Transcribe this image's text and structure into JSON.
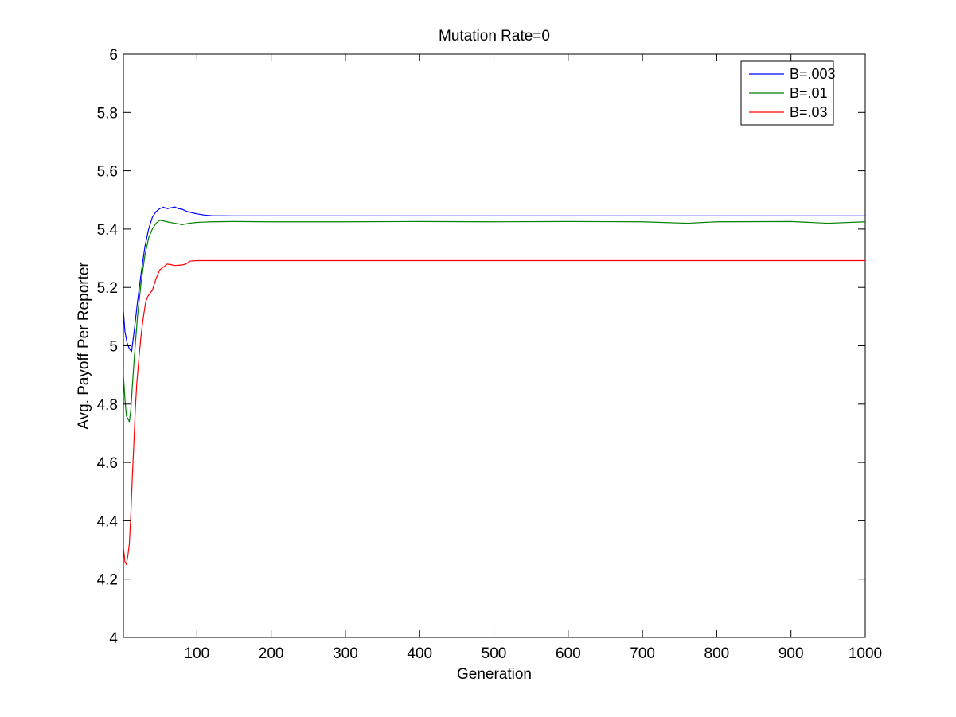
{
  "chart_data": {
    "type": "line",
    "title": "Mutation Rate=0",
    "xlabel": "Generation",
    "ylabel": "Avg. Payoff Per Reporter",
    "xlim": [
      1,
      1000
    ],
    "ylim": [
      4,
      6
    ],
    "xticks": [
      100,
      200,
      300,
      400,
      500,
      600,
      700,
      800,
      900,
      1000
    ],
    "yticks": [
      4,
      4.2,
      4.4,
      4.6,
      4.8,
      5,
      5.2,
      5.4,
      5.6,
      5.8,
      6
    ],
    "xtick_labels": [
      "100",
      "200",
      "300",
      "400",
      "500",
      "600",
      "700",
      "800",
      "900",
      "1000"
    ],
    "ytick_labels": [
      "4",
      "4.2",
      "4.4",
      "4.6",
      "4.8",
      "5",
      "5.2",
      "5.4",
      "5.6",
      "5.8",
      "6"
    ],
    "grid": false,
    "legend_position": "top-right",
    "series": [
      {
        "name": "B=.003",
        "color": "#0000ff",
        "x": [
          1,
          3,
          6,
          9,
          12,
          16,
          20,
          25,
          30,
          35,
          40,
          45,
          50,
          55,
          60,
          65,
          70,
          75,
          80,
          85,
          90,
          95,
          100,
          105,
          110,
          115,
          120,
          150,
          200,
          300,
          400,
          500,
          600,
          700,
          800,
          900,
          1000
        ],
        "y": [
          5.12,
          5.05,
          5.01,
          4.99,
          4.98,
          5.06,
          5.15,
          5.25,
          5.34,
          5.4,
          5.44,
          5.46,
          5.47,
          5.475,
          5.47,
          5.473,
          5.476,
          5.47,
          5.468,
          5.462,
          5.458,
          5.455,
          5.452,
          5.45,
          5.448,
          5.447,
          5.446,
          5.445,
          5.445,
          5.445,
          5.445,
          5.445,
          5.445,
          5.445,
          5.445,
          5.445,
          5.445
        ]
      },
      {
        "name": "B=.01",
        "color": "#008000",
        "x": [
          1,
          3,
          5,
          7,
          9,
          11,
          13,
          16,
          20,
          25,
          30,
          35,
          40,
          45,
          50,
          55,
          60,
          65,
          70,
          75,
          80,
          90,
          100,
          120,
          150,
          200,
          300,
          400,
          500,
          600,
          700,
          760,
          800,
          900,
          950,
          1000
        ],
        "y": [
          4.9,
          4.82,
          4.76,
          4.75,
          4.74,
          4.78,
          4.86,
          4.97,
          5.1,
          5.22,
          5.31,
          5.37,
          5.4,
          5.42,
          5.43,
          5.428,
          5.425,
          5.422,
          5.42,
          5.418,
          5.415,
          5.42,
          5.423,
          5.425,
          5.426,
          5.425,
          5.425,
          5.426,
          5.425,
          5.426,
          5.425,
          5.42,
          5.425,
          5.426,
          5.42,
          5.425
        ]
      },
      {
        "name": "B=.03",
        "color": "#ff0000",
        "x": [
          1,
          3,
          5,
          7,
          9,
          11,
          13,
          15,
          17,
          19,
          22,
          25,
          28,
          31,
          34,
          37,
          40,
          45,
          50,
          55,
          60,
          65,
          70,
          75,
          80,
          85,
          88,
          90,
          100,
          150,
          200,
          300,
          400,
          500,
          600,
          700,
          800,
          900,
          1000
        ],
        "y": [
          4.31,
          4.26,
          4.25,
          4.28,
          4.32,
          4.42,
          4.55,
          4.66,
          4.78,
          4.87,
          4.96,
          5.04,
          5.1,
          5.15,
          5.17,
          5.18,
          5.19,
          5.23,
          5.26,
          5.27,
          5.28,
          5.278,
          5.275,
          5.276,
          5.277,
          5.28,
          5.285,
          5.29,
          5.292,
          5.292,
          5.292,
          5.292,
          5.292,
          5.292,
          5.292,
          5.292,
          5.292,
          5.292,
          5.292
        ]
      }
    ]
  }
}
